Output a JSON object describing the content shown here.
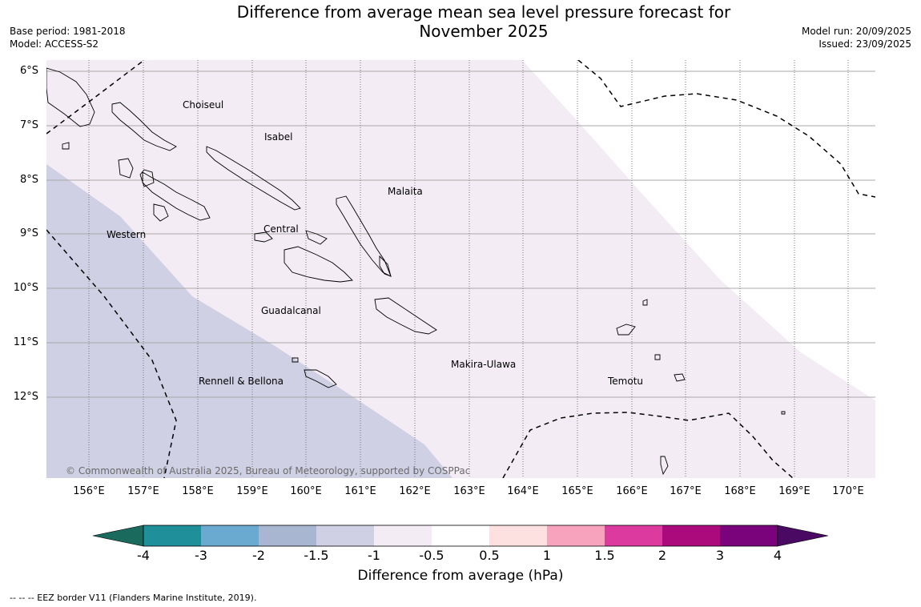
{
  "title_line1": "Difference from average mean sea level pressure forecast for",
  "title_line2": "November 2025",
  "meta": {
    "base_period": "Base period: 1981-2018",
    "model": "Model: ACCESS-S2",
    "model_run": "Model run: 20/09/2025",
    "issued": "Issued: 23/09/2025"
  },
  "map": {
    "latitudes": [
      "6°S",
      "7°S",
      "8°S",
      "9°S",
      "10°S",
      "11°S",
      "12°S"
    ],
    "longitudes": [
      "156°E",
      "157°E",
      "158°E",
      "159°E",
      "160°E",
      "161°E",
      "162°E",
      "163°E",
      "164°E",
      "165°E",
      "166°E",
      "167°E",
      "168°E",
      "169°E",
      "170°E"
    ],
    "places": [
      "Choiseul",
      "Isabel",
      "Malaita",
      "Western",
      "Central",
      "Guadalcanal",
      "Makira-Ulawa",
      "Rennell & Bellona",
      "Temotu"
    ],
    "copyright": "© Commonwealth of Australia 2025, Bureau of Meteorology, supported by COSPPac"
  },
  "colorbar": {
    "labels": [
      "-4",
      "-3",
      "-2",
      "-1.5",
      "-1",
      "-0.5",
      "0.5",
      "1",
      "1.5",
      "2",
      "3",
      "4"
    ],
    "colors": [
      "#1a6b5e",
      "#1f8f99",
      "#6aa9d0",
      "#a8b6d2",
      "#cfd0e3",
      "#f3ecf5",
      "#ffffff",
      "#fde0e0",
      "#f8a3be",
      "#dd3aa0",
      "#ab0a7d",
      "#7a037b",
      "#4a0a63"
    ],
    "title": "Difference from average (hPa)"
  },
  "footnote": "--  --  -- EEZ border V11 (Flanders Marine Institute, 2019)."
}
